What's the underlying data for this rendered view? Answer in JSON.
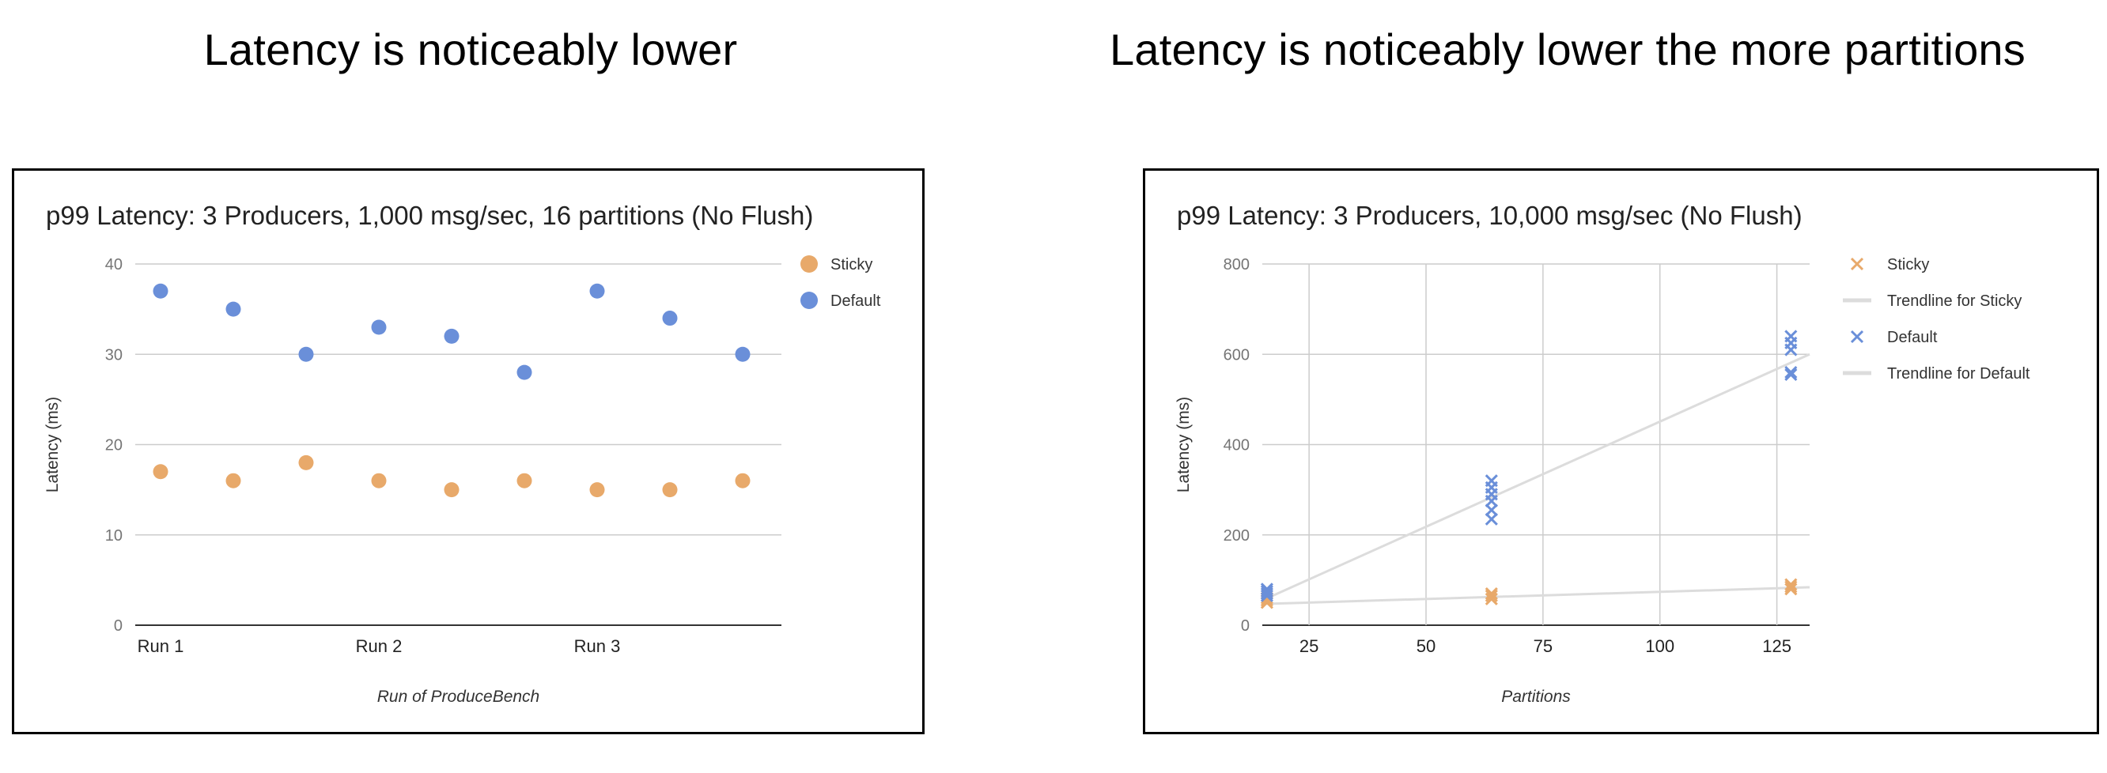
{
  "slide": {
    "left_heading": "Latency is noticeably lower",
    "right_heading": "Latency is noticeably lower the more partitions"
  },
  "chart_data": [
    {
      "type": "scatter",
      "title": "p99 Latency: 3 Producers, 1,000 msg/sec, 16 partitions (No Flush)",
      "xlabel": "Run of ProduceBench",
      "ylabel": "Latency (ms)",
      "ylim": [
        0,
        40
      ],
      "yticks": [
        0,
        10,
        20,
        30,
        40
      ],
      "x_ticks": [
        "Run 1",
        "Run 2",
        "Run 3"
      ],
      "legend_position": "right",
      "grid": "horizontal",
      "categories": [
        "Run 1",
        "",
        "",
        "Run 2",
        "",
        "",
        "Run 3",
        "",
        ""
      ],
      "series": [
        {
          "name": "Sticky",
          "color": "#e8a96a",
          "marker": "circle",
          "values": [
            17,
            16,
            18,
            16,
            15,
            16,
            15,
            15,
            16
          ]
        },
        {
          "name": "Default",
          "color": "#6a8fd9",
          "marker": "circle",
          "values": [
            37,
            35,
            30,
            33,
            32,
            28,
            37,
            34,
            30
          ]
        }
      ]
    },
    {
      "type": "scatter",
      "title": "p99 Latency: 3 Producers, 10,000 msg/sec (No Flush)",
      "xlabel": "Partitions",
      "ylabel": "Latency (ms)",
      "xlim": [
        15,
        132
      ],
      "ylim": [
        0,
        800
      ],
      "xticks": [
        25,
        50,
        75,
        100,
        125
      ],
      "yticks": [
        0,
        200,
        400,
        600,
        800
      ],
      "legend_position": "right",
      "grid": "both",
      "series": [
        {
          "name": "Sticky",
          "color": "#e8a96a",
          "marker": "x",
          "x": [
            16,
            16,
            16,
            64,
            64,
            64,
            128,
            128,
            128
          ],
          "y": [
            50,
            55,
            60,
            58,
            65,
            70,
            80,
            85,
            90
          ]
        },
        {
          "name": "Default",
          "color": "#6a8fd9",
          "marker": "x",
          "x": [
            16,
            16,
            16,
            16,
            64,
            64,
            64,
            64,
            64,
            64,
            128,
            128,
            128,
            128,
            128
          ],
          "y": [
            65,
            70,
            75,
            80,
            235,
            255,
            275,
            290,
            305,
            320,
            555,
            560,
            610,
            625,
            640
          ]
        }
      ],
      "trendlines": [
        {
          "name": "Trendline for Sticky",
          "color": "#dcdcdc",
          "x": [
            15,
            132
          ],
          "y": [
            47,
            84
          ]
        },
        {
          "name": "Trendline for Default",
          "color": "#dcdcdc",
          "x": [
            15,
            132
          ],
          "y": [
            55,
            600
          ]
        }
      ]
    }
  ]
}
